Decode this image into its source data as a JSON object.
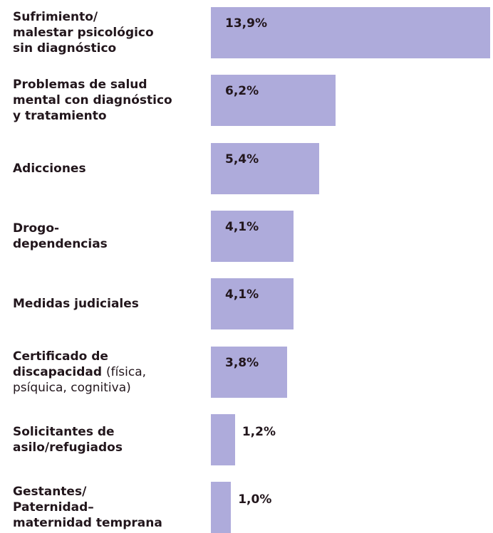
{
  "chart_data": {
    "type": "bar",
    "orientation": "horizontal",
    "categories": [
      "Sufrimiento/\nmalestar psicológico\nsin diagnóstico",
      "Problemas de salud\nmental con diagnóstico\ny tratamiento",
      "Adicciones",
      "Drogo-\ndependencias",
      "Medidas judiciales",
      "Certificado de\ndiscapacidad",
      "Solicitantes de\nasilo/refugiados",
      "Gestantes/\nPaternidad–\nmaternidad temprana"
    ],
    "category_notes": [
      null,
      null,
      null,
      null,
      null,
      "(física,\npsíquica, cognitiva)",
      null,
      null
    ],
    "values": [
      13.9,
      6.2,
      5.4,
      4.1,
      4.1,
      3.8,
      1.2,
      1.0
    ],
    "value_labels": [
      "13,9%",
      "6,2%",
      "5,4%",
      "4,1%",
      "4,1%",
      "3,8%",
      "1,2%",
      "1,0%"
    ],
    "color": "#aeabdb",
    "xlim": [
      0,
      14
    ]
  }
}
